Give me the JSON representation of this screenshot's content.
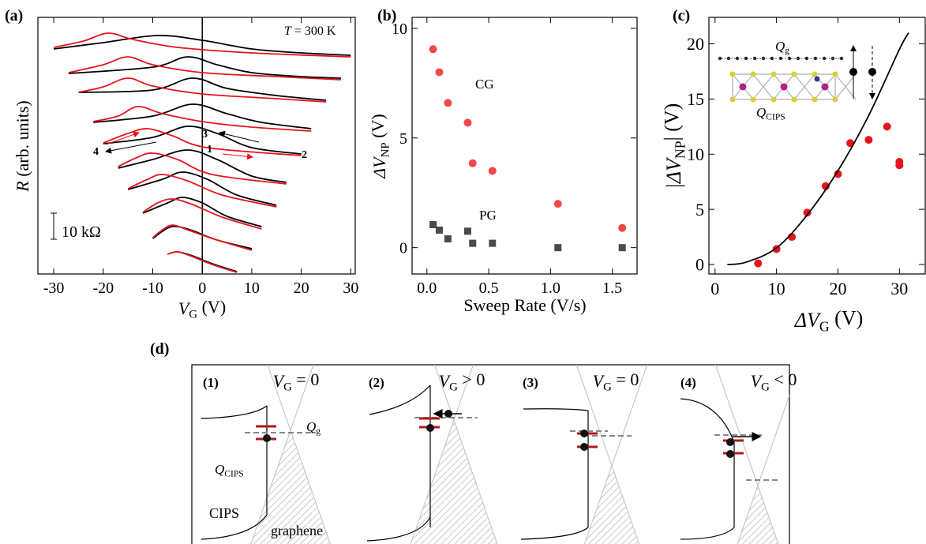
{
  "chart_data": [
    {
      "type": "line",
      "panel_label": "(a)",
      "xlabel": [
        "V",
        "G",
        " (V)"
      ],
      "ylabel": [
        "R",
        " (arb. units)"
      ],
      "annotation": [
        "T",
        " = 300 K"
      ],
      "scale_bar": "10 kΩ",
      "sweep_labels": [
        "1",
        "2",
        "3",
        "4"
      ],
      "xlim": [
        -33.2,
        30.9
      ],
      "xticks": [
        -30,
        -20,
        -10,
        0,
        10,
        20,
        30
      ],
      "ylim": [
        0,
        325
      ],
      "series": [
        {
          "color": "#000000",
          "x": [
            -30,
            -20,
            -9,
            0,
            10,
            20,
            30
          ],
          "values": [
            285,
            293,
            302,
            296,
            285,
            280,
            277
          ]
        },
        {
          "color": "#e8141c",
          "x": [
            -30,
            -24,
            -19,
            -14,
            -5,
            10,
            30
          ],
          "values": [
            287,
            295,
            305,
            297,
            287,
            280,
            275
          ]
        },
        {
          "color": "#000000",
          "x": [
            -27,
            -10,
            -3,
            3,
            10,
            20,
            28
          ],
          "values": [
            254,
            262,
            275,
            265,
            255,
            250,
            248
          ]
        },
        {
          "color": "#e8141c",
          "x": [
            -27,
            -20,
            -15,
            -10,
            0,
            15,
            28
          ],
          "values": [
            255,
            265,
            275,
            265,
            255,
            250,
            246
          ]
        },
        {
          "color": "#000000",
          "x": [
            -25,
            -10,
            -2,
            5,
            15,
            25
          ],
          "values": [
            230,
            233,
            248,
            235,
            226,
            220
          ]
        },
        {
          "color": "#e8141c",
          "x": [
            -25,
            -20,
            -15,
            -10,
            0,
            15,
            25
          ],
          "values": [
            230,
            237,
            248,
            238,
            228,
            222,
            218
          ]
        },
        {
          "color": "#000000",
          "x": [
            -22,
            -10,
            -2,
            5,
            12,
            22
          ],
          "values": [
            192,
            200,
            215,
            203,
            192,
            184
          ]
        },
        {
          "color": "#e8141c",
          "x": [
            -22,
            -17,
            -13,
            -8,
            0,
            10,
            22
          ],
          "values": [
            193,
            200,
            212,
            203,
            193,
            186,
            181
          ]
        },
        {
          "color": "#000000",
          "x": [
            -20,
            -10,
            -3,
            3,
            10,
            20
          ],
          "values": [
            165,
            173,
            187,
            178,
            160,
            152
          ]
        },
        {
          "color": "#e8141c",
          "x": [
            -20,
            -15,
            -11,
            -6,
            1,
            20
          ],
          "values": [
            166,
            178,
            184,
            175,
            160,
            150
          ]
        },
        {
          "color": "#000000",
          "x": [
            -17,
            -10,
            -3,
            3,
            10,
            17
          ],
          "values": [
            134,
            145,
            157,
            145,
            124,
            116
          ]
        },
        {
          "color": "#e8141c",
          "x": [
            -17,
            -13,
            -10,
            -5,
            2,
            17
          ],
          "values": [
            136,
            148,
            153,
            145,
            126,
            114
          ]
        },
        {
          "color": "#000000",
          "x": [
            -15,
            -8,
            -4,
            1,
            7,
            15
          ],
          "values": [
            107,
            120,
            129,
            120,
            100,
            87
          ]
        },
        {
          "color": "#e8141c",
          "x": [
            -15,
            -11,
            -8,
            -3,
            4,
            15
          ],
          "values": [
            108,
            120,
            126,
            118,
            100,
            85
          ]
        },
        {
          "color": "#000000",
          "x": [
            -12,
            -7,
            -4,
            0,
            5,
            12
          ],
          "values": [
            77,
            90,
            97,
            90,
            73,
            60
          ]
        },
        {
          "color": "#e8141c",
          "x": [
            -12,
            -9,
            -6,
            -2,
            4,
            12
          ],
          "values": [
            78,
            90,
            95,
            88,
            72,
            57
          ]
        },
        {
          "color": "#000000",
          "x": [
            -10,
            -7,
            -5,
            -2,
            3,
            10
          ],
          "values": [
            45,
            58,
            60,
            55,
            43,
            32
          ]
        },
        {
          "color": "#e8141c",
          "x": [
            -10,
            -8,
            -6,
            -3,
            2,
            10
          ],
          "values": [
            46,
            56,
            62,
            56,
            45,
            30
          ]
        },
        {
          "color": "#000000",
          "x": [
            -7,
            -5,
            -2,
            2,
            7
          ],
          "values": [
            25,
            28,
            23,
            13,
            3
          ]
        },
        {
          "color": "#e8141c",
          "x": [
            -7,
            -5,
            -2,
            2,
            7
          ],
          "values": [
            25,
            28,
            22,
            12,
            2
          ]
        }
      ]
    },
    {
      "type": "scatter",
      "panel_label": "(b)",
      "xlabel": [
        "Sweep Rate (V/s)"
      ],
      "ylabel": [
        "ΔV",
        "NP",
        " (V)"
      ],
      "xlim": [
        -0.12,
        1.7
      ],
      "xticks": [
        {
          "value": 0,
          "label": "0.0"
        },
        0.5,
        {
          "value": 1,
          "label": "1.0"
        },
        1.5
      ],
      "ylim": [
        -1.2,
        10.5
      ],
      "yticks": [
        0,
        5,
        10
      ],
      "series": [
        {
          "name": "CG",
          "color": "#f04848",
          "marker": "circle",
          "x": [
            0.05,
            0.1,
            0.17,
            0.33,
            0.37,
            0.53,
            1.06,
            1.58
          ],
          "values": [
            9.05,
            8.0,
            6.6,
            5.7,
            3.85,
            3.5,
            2.0,
            0.9
          ]
        },
        {
          "name": "PG",
          "color": "#4a4a4a",
          "marker": "square",
          "x": [
            0.05,
            0.1,
            0.17,
            0.33,
            0.37,
            0.53,
            1.06,
            1.58
          ],
          "values": [
            1.05,
            0.8,
            0.4,
            0.75,
            0.2,
            0.2,
            0.0,
            0.0
          ]
        }
      ]
    },
    {
      "type": "scatter",
      "panel_label": "(c)",
      "xlabel": [
        "ΔV",
        "G",
        " (V)"
      ],
      "ylabel": [
        "|ΔV",
        "NP",
        "| (V)"
      ],
      "inset_labels": {
        "Qg": [
          "Q",
          "g"
        ],
        "QCIPS": [
          "Q",
          "CIPS"
        ]
      },
      "xlim": [
        -1,
        34.2
      ],
      "xticks": [
        0,
        10,
        20,
        30
      ],
      "ylim": [
        -0.86,
        22.4
      ],
      "yticks": [
        0,
        5,
        10,
        15,
        20
      ],
      "series": [
        {
          "color": "#e8141c",
          "marker": "circle",
          "x": [
            7,
            10,
            12.5,
            15,
            18,
            20,
            22,
            25,
            28,
            30,
            30
          ],
          "values": [
            0.1,
            1.4,
            2.5,
            4.7,
            7.1,
            8.2,
            11.0,
            11.3,
            12.5,
            9.3,
            9.0
          ]
        },
        {
          "color": "#000000",
          "marker": "line",
          "x": [
            2,
            5,
            10,
            15,
            20,
            25,
            30,
            31.5
          ],
          "values": [
            0,
            0.2,
            1.5,
            4.5,
            8.5,
            13.5,
            19.5,
            21
          ]
        }
      ]
    }
  ],
  "diagram": {
    "panel_label": "(d)",
    "steps": [
      {
        "label": "(1)",
        "condition": [
          "V",
          "G",
          " = 0"
        ]
      },
      {
        "label": "(2)",
        "condition": [
          "V",
          "G",
          " > 0"
        ]
      },
      {
        "label": "(3)",
        "condition": [
          "V",
          "G",
          " = 0"
        ]
      },
      {
        "label": "(4)",
        "condition": [
          "V",
          "G",
          " < 0"
        ]
      }
    ],
    "labels": {
      "Qg": [
        "Q",
        "g"
      ],
      "QCIPS": [
        "Q",
        "CIPS"
      ],
      "cips": "CIPS",
      "graphene": "graphene"
    }
  }
}
